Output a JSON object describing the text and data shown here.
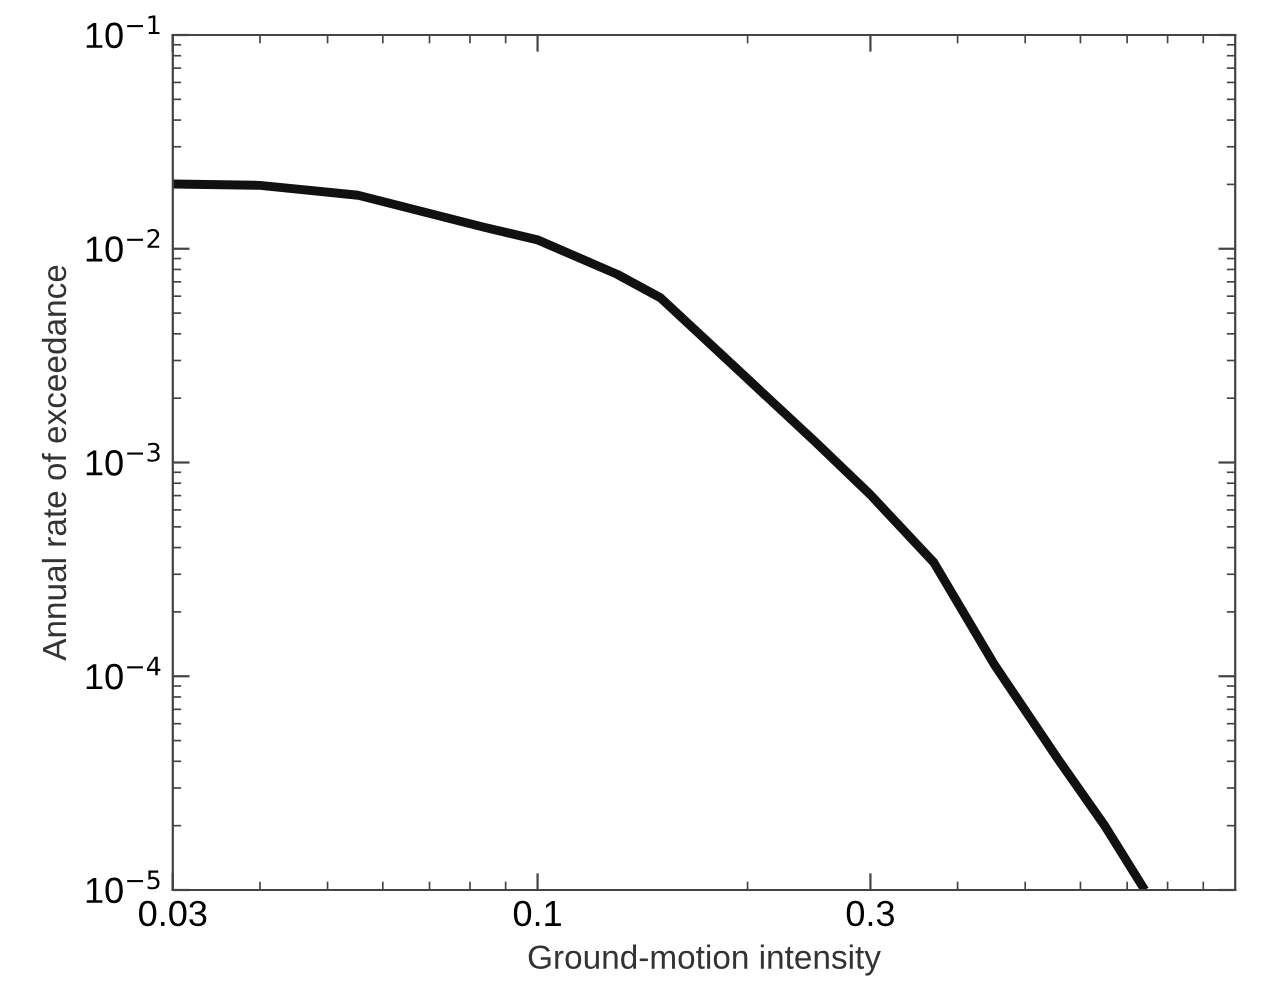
{
  "chart_data": {
    "type": "line",
    "xlabel": "Ground-motion intensity",
    "ylabel": "Annual rate of exceedance",
    "log": "xy",
    "xlim": [
      0.03,
      1
    ],
    "ylim": [
      1e-05,
      0.1
    ],
    "xticks": [
      0.03,
      0.1,
      0.3
    ],
    "yticks": [
      {
        "value": 1e-05,
        "label": "10$^{−5}$"
      },
      {
        "value": 0.0001,
        "label": "10$^{−4}$"
      },
      {
        "value": 0.001,
        "label": "10$^{−3}$"
      },
      {
        "value": 0.01,
        "label": "10$^{−2}$"
      },
      {
        "value": 0.1,
        "label": "10$^{−1}$"
      }
    ],
    "grid": false,
    "marker": "none",
    "line_style": "solid",
    "series": [
      {
        "color": "#111111",
        "x": [
          0.03,
          0.04,
          0.0553,
          0.0838,
          0.1,
          0.13,
          0.15,
          0.197,
          0.25,
          0.3,
          0.37,
          0.452,
          0.557,
          0.65,
          0.742
        ],
        "values": [
          0.0201,
          0.0198,
          0.0178,
          0.0126,
          0.011,
          0.0076,
          0.0059,
          0.00258,
          0.00125,
          0.000706,
          0.00034,
          0.000113,
          4.1e-05,
          2e-05,
          1e-05
        ]
      }
    ]
  }
}
